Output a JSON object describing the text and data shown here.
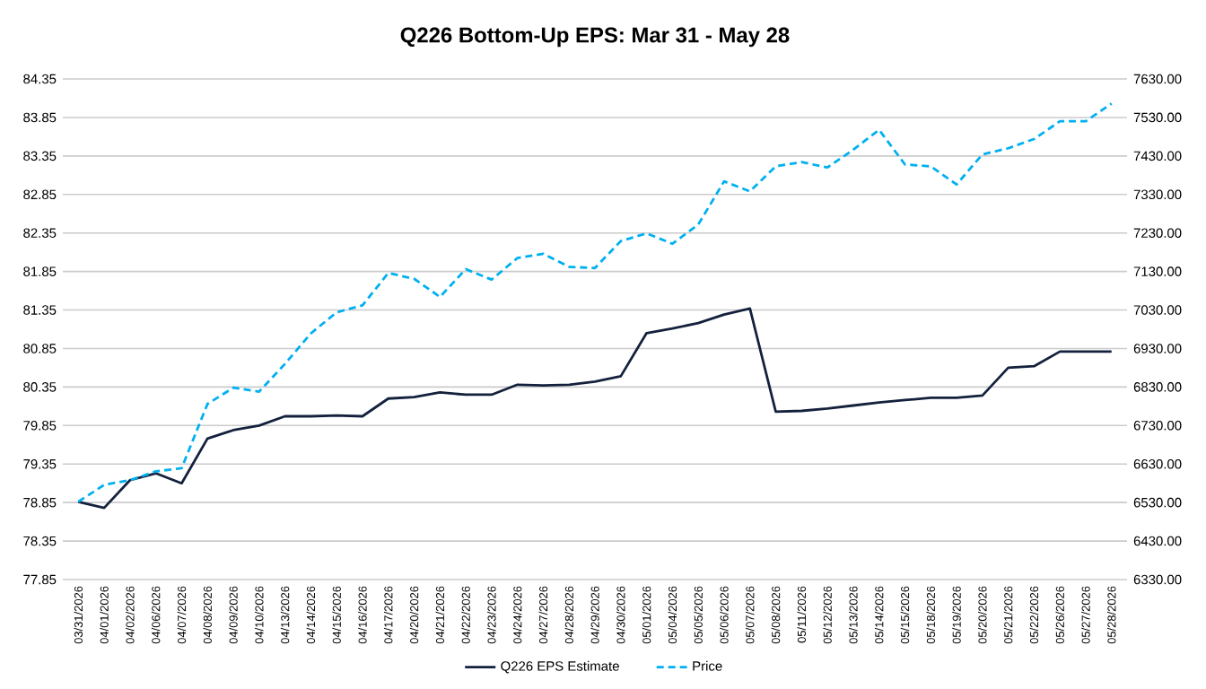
{
  "chart_data": {
    "type": "line",
    "title": "Q226 Bottom-Up EPS: Mar 31 - May 28",
    "categories": [
      "03/31/2026",
      "04/01/2026",
      "04/02/2026",
      "04/06/2026",
      "04/07/2026",
      "04/08/2026",
      "04/09/2026",
      "04/10/2026",
      "04/13/2026",
      "04/14/2026",
      "04/15/2026",
      "04/16/2026",
      "04/17/2026",
      "04/20/2026",
      "04/21/2026",
      "04/22/2026",
      "04/23/2026",
      "04/24/2026",
      "04/27/2026",
      "04/28/2026",
      "04/29/2026",
      "04/30/2026",
      "05/01/2026",
      "05/04/2026",
      "05/05/2026",
      "05/06/2026",
      "05/07/2026",
      "05/08/2026",
      "05/11/2026",
      "05/12/2026",
      "05/13/2026",
      "05/14/2026",
      "05/15/2026",
      "05/18/2026",
      "05/19/2026",
      "05/20/2026",
      "05/21/2026",
      "05/22/2026",
      "05/26/2026",
      "05/27/2026",
      "05/28/2026"
    ],
    "series": [
      {
        "name": "Q226 EPS Estimate",
        "color": "#14213d",
        "line_style": "solid",
        "values": [
          78.86,
          78.78,
          79.14,
          79.23,
          79.1,
          79.68,
          79.79,
          79.85,
          79.97,
          79.97,
          79.98,
          79.97,
          80.2,
          80.22,
          80.28,
          80.25,
          80.25,
          80.38,
          80.37,
          80.38,
          80.42,
          80.49,
          81.05,
          81.11,
          81.18,
          81.29,
          81.37,
          80.03,
          80.04,
          80.07,
          80.11,
          80.15,
          80.18,
          80.21,
          80.21,
          80.24,
          80.6,
          80.62,
          80.81,
          80.81,
          80.81
        ]
      },
      {
        "name": "Price",
        "color": "#00b0f0",
        "line_style": "dashed",
        "axis": "y2",
        "values": [
          6532,
          6576,
          6588,
          6611,
          6619,
          6786,
          6828,
          6818,
          6890,
          6969,
          7024,
          7042,
          7126,
          7111,
          7064,
          7136,
          7109,
          7165,
          7176,
          7142,
          7139,
          7209,
          7229,
          7202,
          7252,
          7364,
          7338,
          7403,
          7414,
          7400,
          7446,
          7498,
          7408,
          7403,
          7356,
          7434,
          7450,
          7474,
          7520,
          7520,
          7566
        ]
      }
    ],
    "ylim": [
      77.85,
      84.35
    ],
    "yticks": [
      77.85,
      78.35,
      78.85,
      79.35,
      79.85,
      80.35,
      80.85,
      81.35,
      81.85,
      82.35,
      82.85,
      83.35,
      83.85,
      84.35
    ],
    "y2lim": [
      6330,
      7630
    ],
    "y2ticks": [
      {
        "value": 6330,
        "label": "6330.00"
      },
      {
        "value": 6430,
        "label": "6430.00"
      },
      {
        "value": 6530,
        "label": "6530.00"
      },
      {
        "value": 6630,
        "label": "6630.00"
      },
      {
        "value": 6730,
        "label": "6730.00"
      },
      {
        "value": 6830,
        "label": "6830.00"
      },
      {
        "value": 6930,
        "label": "6930.00"
      },
      {
        "value": 7030,
        "label": "7030.00"
      },
      {
        "value": 7130,
        "label": "7130.00"
      },
      {
        "value": 7230,
        "label": "7230.00"
      },
      {
        "value": 7330,
        "label": "7330.00"
      },
      {
        "value": 7430,
        "label": "7430.00"
      },
      {
        "value": 7530,
        "label": "7530.00"
      },
      {
        "value": 7630,
        "label": "7630.00"
      }
    ],
    "grid": "y",
    "legend": "bottom"
  }
}
